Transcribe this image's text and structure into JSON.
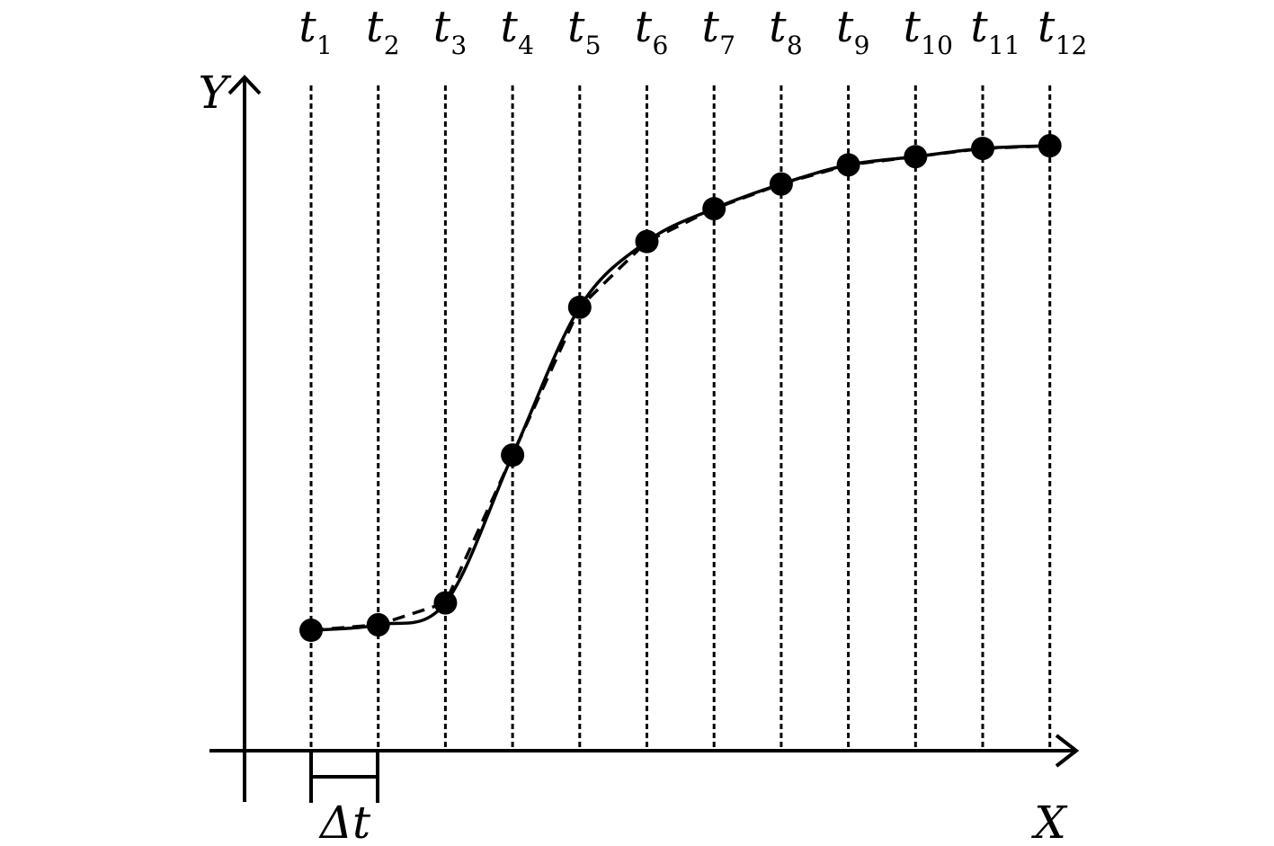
{
  "axes": {
    "x_label": "X",
    "y_label": "Y"
  },
  "time_steps": [
    {
      "base": "t",
      "sub": "1"
    },
    {
      "base": "t",
      "sub": "2"
    },
    {
      "base": "t",
      "sub": "3"
    },
    {
      "base": "t",
      "sub": "4"
    },
    {
      "base": "t",
      "sub": "5"
    },
    {
      "base": "t",
      "sub": "6"
    },
    {
      "base": "t",
      "sub": "7"
    },
    {
      "base": "t",
      "sub": "8"
    },
    {
      "base": "t",
      "sub": "9"
    },
    {
      "base": "t",
      "sub": "10"
    },
    {
      "base": "t",
      "sub": "11"
    },
    {
      "base": "t",
      "sub": "12"
    }
  ],
  "interval_label": "Δt",
  "sample_values": [
    0.22,
    0.23,
    0.27,
    0.54,
    0.81,
    0.93,
    0.99,
    1.035,
    1.07,
    1.085,
    1.1,
    1.105
  ],
  "colors": {
    "stroke": "#000000",
    "background": "#ffffff"
  },
  "curves": {
    "solid": "smooth underlying curve",
    "dashed": "piecewise-linear interpolation between samples"
  }
}
